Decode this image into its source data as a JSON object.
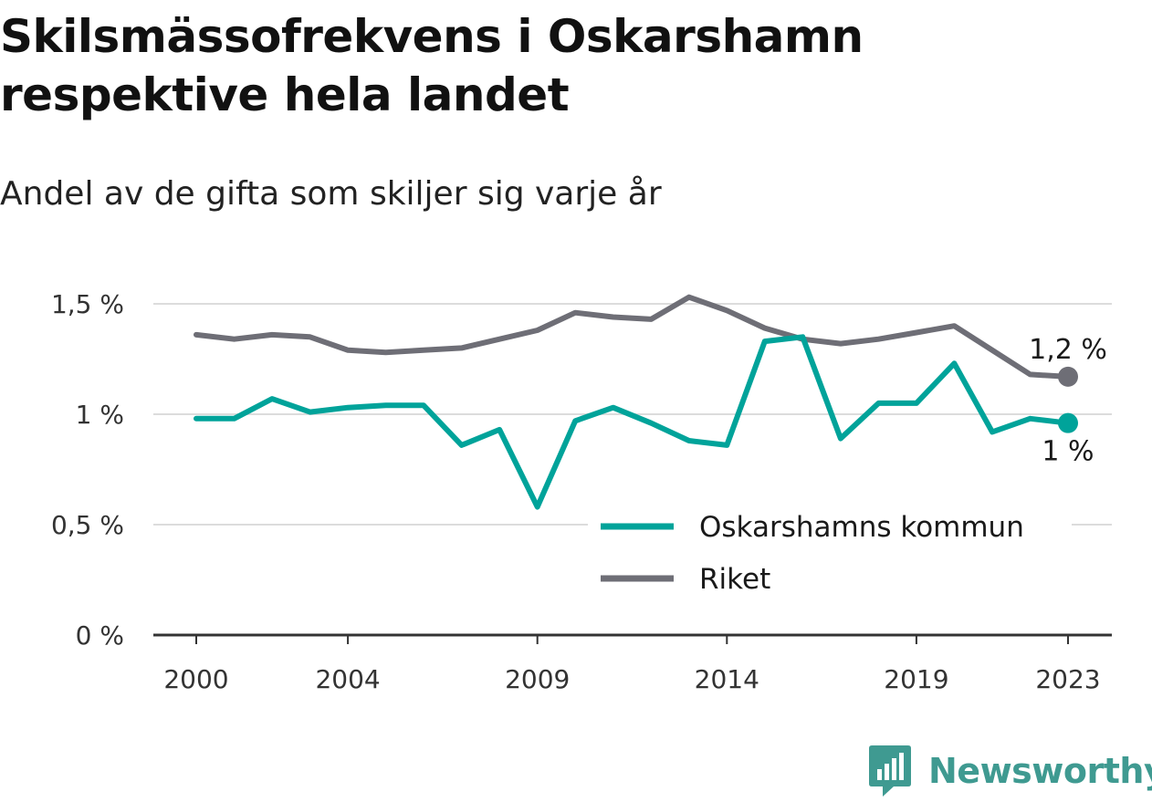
{
  "title": "Skilsmässofrekvens i Oskarshamn respektive hela landet",
  "subtitle": "Andel av de gifta som skiljer sig varje år",
  "brand": {
    "name": "Newsworthy",
    "icon": "newsworthy-logo-icon",
    "color": "#3f9a91"
  },
  "chart_data": {
    "type": "line",
    "x": [
      2000,
      2001,
      2002,
      2003,
      2004,
      2005,
      2006,
      2007,
      2008,
      2009,
      2010,
      2011,
      2012,
      2013,
      2014,
      2015,
      2016,
      2017,
      2018,
      2019,
      2020,
      2021,
      2022,
      2023
    ],
    "x_ticks": [
      2000,
      2004,
      2009,
      2014,
      2019,
      2023
    ],
    "x_tick_labels": [
      "2000",
      "2004",
      "2009",
      "2014",
      "2019",
      "2023"
    ],
    "y_ticks": [
      0,
      0.5,
      1,
      1.5
    ],
    "y_tick_labels": [
      "0 %",
      "0,5 %",
      "1 %",
      "1,5 %"
    ],
    "ylim": [
      0,
      1.5
    ],
    "grid": true,
    "legend_position": "lower-right",
    "series": [
      {
        "name": "Oskarshamns kommun",
        "color": "#00a39a",
        "end_label": "1 %",
        "values": [
          0.98,
          0.98,
          1.07,
          1.01,
          1.03,
          1.04,
          1.04,
          0.86,
          0.93,
          0.58,
          0.97,
          1.03,
          0.96,
          0.88,
          0.86,
          1.33,
          1.35,
          0.89,
          1.05,
          1.05,
          1.23,
          0.92,
          0.98,
          0.96
        ]
      },
      {
        "name": "Riket",
        "color": "#6e6e76",
        "end_label": "1,2 %",
        "values": [
          1.36,
          1.34,
          1.36,
          1.35,
          1.29,
          1.28,
          1.29,
          1.3,
          1.34,
          1.38,
          1.46,
          1.44,
          1.43,
          1.53,
          1.47,
          1.39,
          1.34,
          1.32,
          1.34,
          1.37,
          1.4,
          1.29,
          1.18,
          1.17
        ]
      }
    ]
  }
}
